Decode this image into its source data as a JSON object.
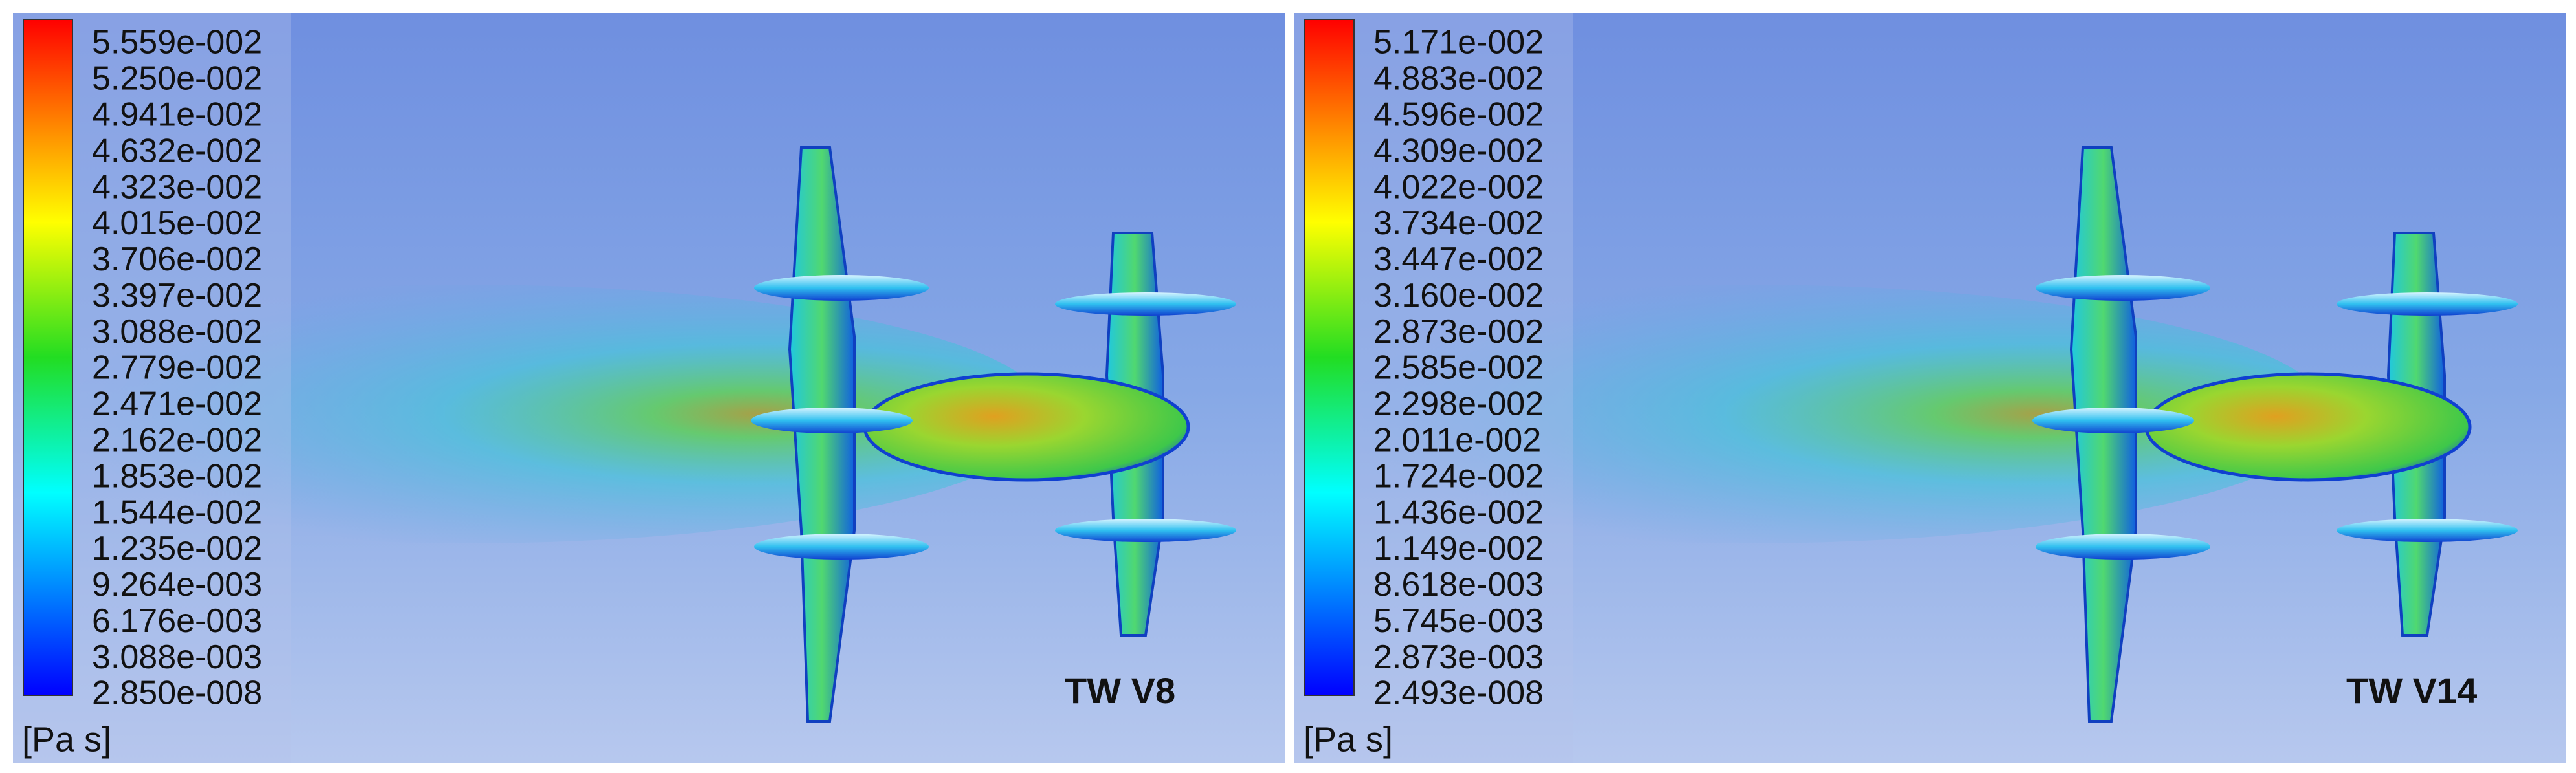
{
  "panels": [
    {
      "legend": {
        "ticks": [
          "5.559e-002",
          "5.250e-002",
          "4.941e-002",
          "4.632e-002",
          "4.323e-002",
          "4.015e-002",
          "3.706e-002",
          "3.397e-002",
          "3.088e-002",
          "2.779e-002",
          "2.471e-002",
          "2.162e-002",
          "1.853e-002",
          "1.544e-002",
          "1.235e-002",
          "9.264e-003",
          "6.176e-003",
          "3.088e-003",
          "2.850e-008"
        ],
        "unit": "[Pa s]"
      },
      "label": "TW V8"
    },
    {
      "legend": {
        "ticks": [
          "5.171e-002",
          "4.883e-002",
          "4.596e-002",
          "4.309e-002",
          "4.022e-002",
          "3.734e-002",
          "3.447e-002",
          "3.160e-002",
          "2.873e-002",
          "2.585e-002",
          "2.298e-002",
          "2.011e-002",
          "1.724e-002",
          "1.436e-002",
          "1.149e-002",
          "8.618e-003",
          "5.745e-003",
          "2.873e-003",
          "2.493e-008"
        ],
        "unit": "[Pa s]"
      },
      "label": "TW V14"
    }
  ]
}
